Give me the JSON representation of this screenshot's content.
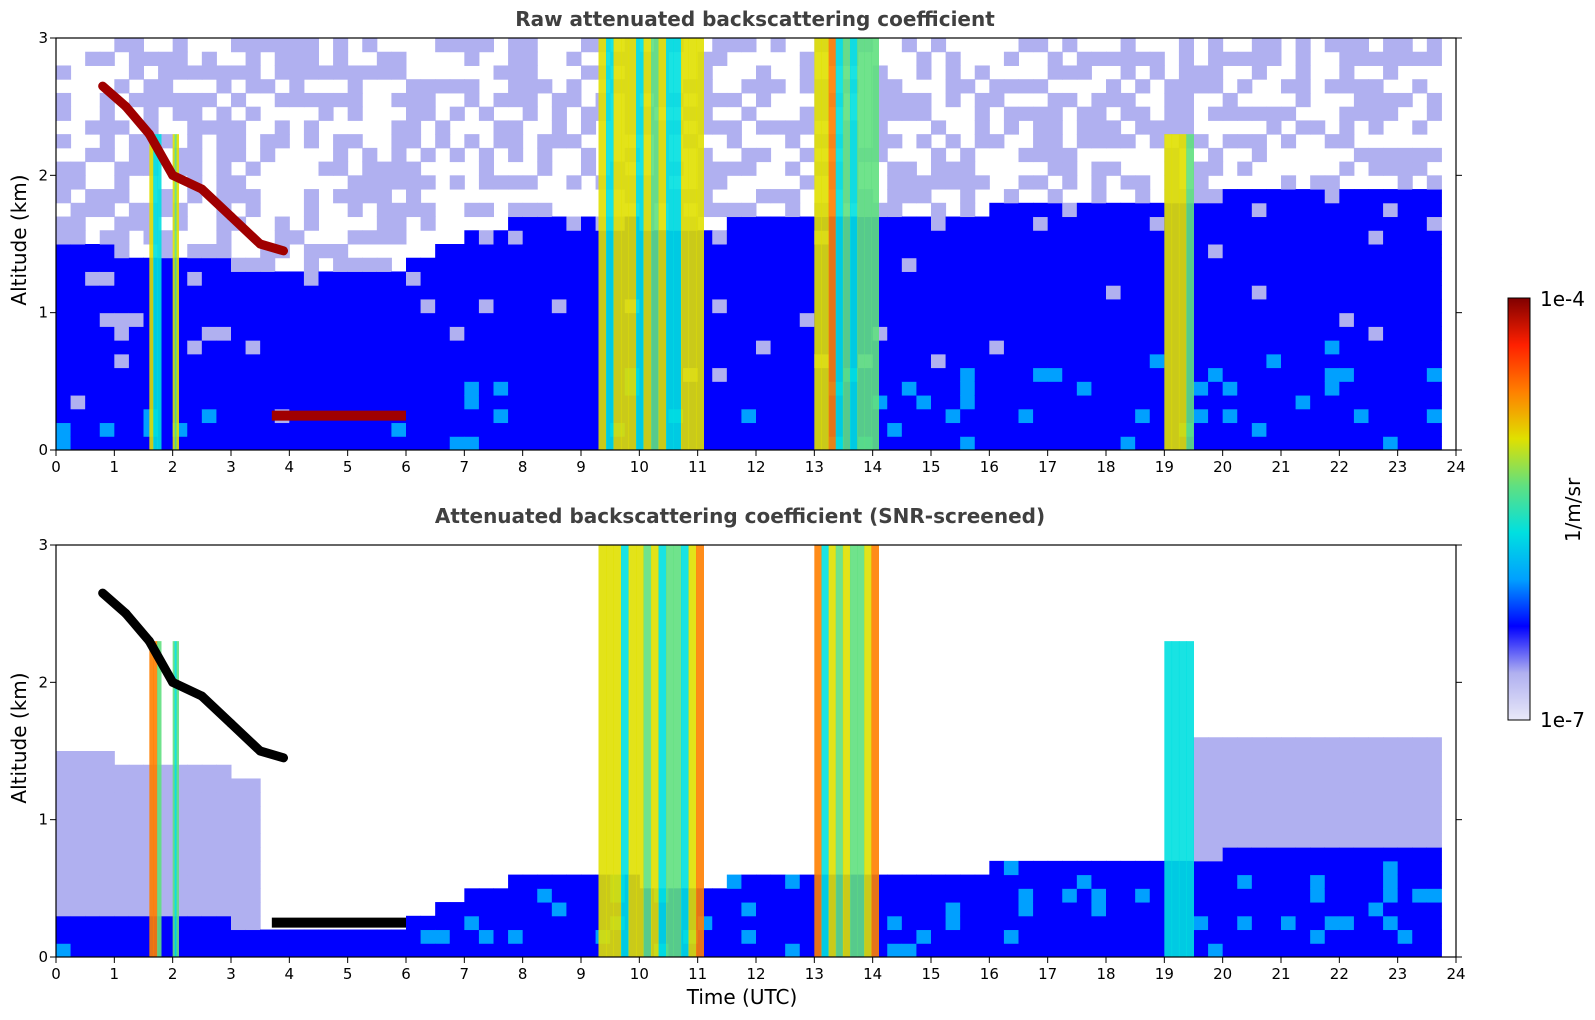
{
  "chart_data": [
    {
      "type": "heatmap",
      "title": "Raw attenuated backscattering coefficient",
      "xlabel": "",
      "ylabel": "Altitude (km)",
      "xlim": [
        0,
        24
      ],
      "ylim": [
        0,
        3
      ],
      "xticks": [
        "0",
        "1",
        "2",
        "3",
        "4",
        "5",
        "6",
        "7",
        "8",
        "9",
        "10",
        "11",
        "12",
        "13",
        "14",
        "15",
        "16",
        "17",
        "18",
        "19",
        "20",
        "21",
        "22",
        "23",
        "24"
      ],
      "yticks": [
        "0",
        "1",
        "2",
        "3"
      ],
      "screened": false
    },
    {
      "type": "heatmap",
      "title": "Attenuated backscattering coefficient (SNR-screened)",
      "xlabel": "Time (UTC)",
      "ylabel": "Altitude (km)",
      "xlim": [
        0,
        24
      ],
      "ylim": [
        0,
        3
      ],
      "xticks": [
        "0",
        "1",
        "2",
        "3",
        "4",
        "5",
        "6",
        "7",
        "8",
        "9",
        "10",
        "11",
        "12",
        "13",
        "14",
        "15",
        "16",
        "17",
        "18",
        "19",
        "20",
        "21",
        "22",
        "23",
        "24"
      ],
      "yticks": [
        "0",
        "1",
        "2",
        "3"
      ],
      "screened": true
    }
  ],
  "colorbar": {
    "label": "1/m/sr",
    "max_label": "1e-4",
    "min_label": "1e-7",
    "scale": "log",
    "range": [
      1e-07,
      0.0001
    ],
    "colors": [
      "#e8e8f8",
      "#b0b0f0",
      "#0000ff",
      "#00a0ff",
      "#00e0e0",
      "#60e080",
      "#e0e000",
      "#ff8000",
      "#ff2000",
      "#800000"
    ]
  },
  "features": {
    "boundary_layer_top": [
      [
        0,
        0.35
      ],
      [
        1,
        0.35
      ],
      [
        2,
        0.3
      ],
      [
        3,
        0.25
      ],
      [
        4,
        0.25
      ],
      [
        5,
        0.22
      ],
      [
        6,
        0.25
      ],
      [
        7,
        0.45
      ],
      [
        8,
        0.6
      ],
      [
        9,
        0.6
      ],
      [
        11,
        0.5
      ],
      [
        12,
        0.6
      ],
      [
        14,
        0.6
      ],
      [
        16,
        0.65
      ],
      [
        18,
        0.75
      ],
      [
        20,
        0.75
      ],
      [
        22,
        0.8
      ],
      [
        24,
        0.75
      ]
    ],
    "cloud_layer": [
      [
        0.8,
        2.65
      ],
      [
        1.2,
        2.5
      ],
      [
        1.6,
        2.3
      ],
      [
        2.0,
        2.0
      ],
      [
        2.5,
        1.9
      ],
      [
        3.0,
        1.7
      ],
      [
        3.5,
        1.5
      ],
      [
        3.9,
        1.45
      ]
    ],
    "low_cloud": [
      [
        3.7,
        0.25
      ],
      [
        6.0,
        0.25
      ]
    ],
    "rain_columns": [
      [
        1.6,
        1.8
      ],
      [
        2.0,
        2.1
      ],
      [
        9.3,
        11.1
      ],
      [
        13.0,
        14.1
      ],
      [
        19.0,
        19.5
      ]
    ]
  }
}
